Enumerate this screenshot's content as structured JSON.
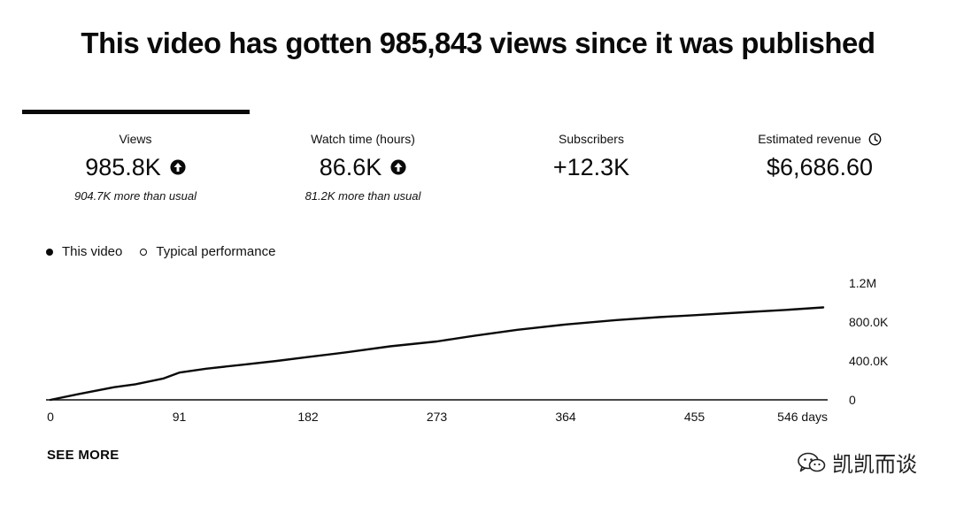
{
  "header": {
    "title": "This video has gotten 985,843 views since it was published"
  },
  "metrics": [
    {
      "label": "Views",
      "value": "985.8K",
      "trend_icon": "arrow-up-circle-icon",
      "note": "904.7K more than usual"
    },
    {
      "label": "Watch time (hours)",
      "value": "86.6K",
      "trend_icon": "arrow-up-circle-icon",
      "note": "81.2K more than usual"
    },
    {
      "label": "Subscribers",
      "value": "+12.3K"
    },
    {
      "label": "Estimated revenue",
      "value": "$6,686.60",
      "info_icon": "clock-icon"
    }
  ],
  "legend": {
    "this_video": "This video",
    "typical": "Typical performance"
  },
  "chart_data": {
    "type": "line",
    "title": "",
    "xlabel": "",
    "ylabel": "",
    "x_ticks": [
      "0",
      "91",
      "182",
      "273",
      "364",
      "455",
      "546 days"
    ],
    "x_tick_values": [
      0,
      91,
      182,
      273,
      364,
      455,
      546
    ],
    "y_ticks": [
      "1.2M",
      "800.0K",
      "400.0K",
      "0"
    ],
    "y_tick_values": [
      1200000,
      800000,
      400000,
      0
    ],
    "xlim": [
      0,
      546
    ],
    "ylim": [
      0,
      1200000
    ],
    "grid": false,
    "y_axis_position": "right",
    "legend_position": "top-left",
    "series": [
      {
        "name": "This video",
        "x": [
          0,
          20,
          45,
          60,
          80,
          91,
          110,
          135,
          160,
          182,
          210,
          240,
          273,
          300,
          330,
          364,
          400,
          430,
          455,
          490,
          520,
          546
        ],
        "y": [
          0,
          60000,
          130000,
          160000,
          220000,
          280000,
          320000,
          360000,
          400000,
          440000,
          490000,
          550000,
          600000,
          660000,
          720000,
          775000,
          820000,
          850000,
          870000,
          900000,
          925000,
          950000
        ]
      }
    ]
  },
  "actions": {
    "see_more": "SEE MORE"
  },
  "watermark": {
    "text": "凯凯而谈",
    "icon": "wechat-icon"
  }
}
